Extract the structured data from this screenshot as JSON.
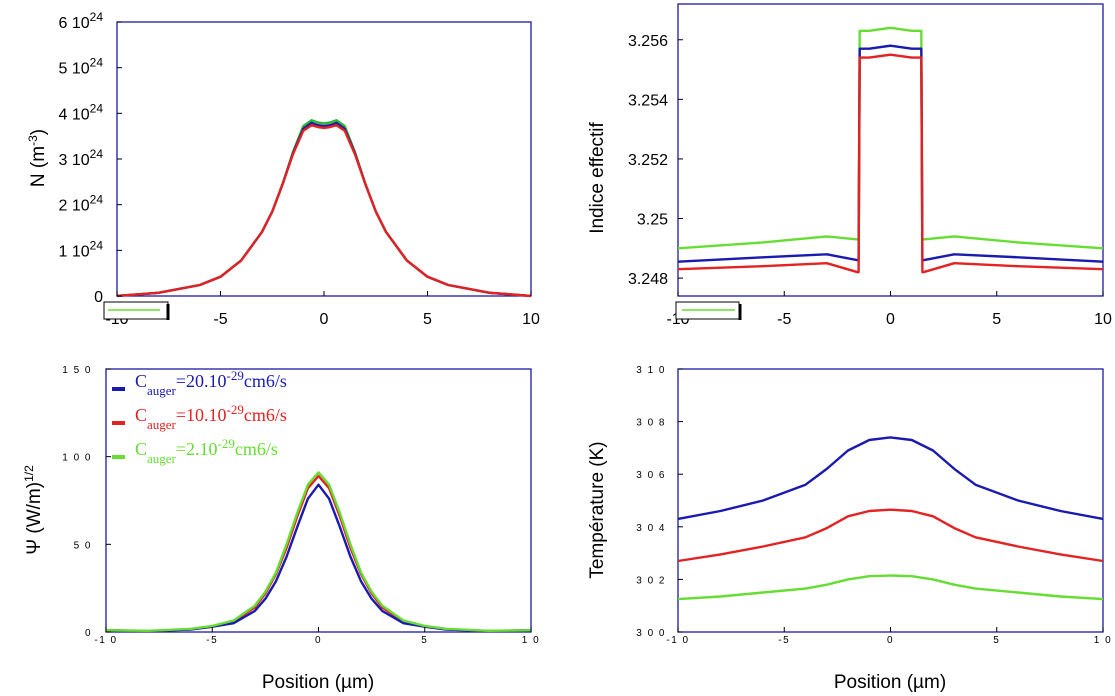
{
  "chart_data": [
    {
      "type": "line",
      "title": "",
      "xlabel": "",
      "ylabel_main": "N (m",
      "ylabel_sup": "-3",
      "ylabel_end": ")",
      "xlim": [
        -10,
        10
      ],
      "ylim": [
        0,
        6e+24
      ],
      "xticks": [
        {
          "v": -10,
          "t": "-10"
        },
        {
          "v": -5,
          "t": "-5"
        },
        {
          "v": 0,
          "t": "0"
        },
        {
          "v": 5,
          "t": "5"
        },
        {
          "v": 10,
          "t": "10"
        }
      ],
      "yticks": [
        {
          "v": 0,
          "base": "0",
          "exp": ""
        },
        {
          "v": 1e+24,
          "base": "1 10",
          "exp": "24"
        },
        {
          "v": 2e+24,
          "base": "2 10",
          "exp": "24"
        },
        {
          "v": 3e+24,
          "base": "3 10",
          "exp": "24"
        },
        {
          "v": 4e+24,
          "base": "4 10",
          "exp": "24"
        },
        {
          "v": 5e+24,
          "base": "5 10",
          "exp": "24"
        },
        {
          "v": 6e+24,
          "base": "6 10",
          "exp": "24"
        }
      ],
      "series": [
        {
          "color": "#2db82d",
          "x": [
            -10,
            -8,
            -6,
            -5,
            -4,
            -3,
            -2.5,
            -2,
            -1.5,
            -1,
            -0.6,
            -0.3,
            0,
            0.3,
            0.6,
            1,
            1.5,
            2,
            2.5,
            3,
            4,
            5,
            6,
            8,
            10
          ],
          "y": [
            3e+21,
            7e+22,
            2.4e+23,
            4.2e+23,
            7.8e+23,
            1.4e+24,
            1.85e+24,
            2.45e+24,
            3.15e+24,
            3.72e+24,
            3.85e+24,
            3.8e+24,
            3.78e+24,
            3.8e+24,
            3.85e+24,
            3.72e+24,
            3.15e+24,
            2.45e+24,
            1.85e+24,
            1.4e+24,
            7.8e+23,
            4.2e+23,
            2.4e+23,
            7e+22,
            3e+21
          ]
        },
        {
          "color": "#1a1ab0",
          "x": [
            -10,
            -8,
            -6,
            -5,
            -4,
            -3,
            -2.5,
            -2,
            -1.5,
            -1,
            -0.6,
            -0.3,
            0,
            0.3,
            0.6,
            1,
            1.5,
            2,
            2.5,
            3,
            4,
            5,
            6,
            8,
            10
          ],
          "y": [
            3e+21,
            7e+22,
            2.4e+23,
            4.2e+23,
            7.8e+23,
            1.4e+24,
            1.85e+24,
            2.45e+24,
            3.12e+24,
            3.66e+24,
            3.79e+24,
            3.74e+24,
            3.72e+24,
            3.74e+24,
            3.79e+24,
            3.66e+24,
            3.12e+24,
            2.45e+24,
            1.85e+24,
            1.4e+24,
            7.8e+23,
            4.2e+23,
            2.4e+23,
            7e+22,
            3e+21
          ]
        },
        {
          "color": "#e32222",
          "x": [
            -10,
            -8,
            -6,
            -5,
            -4,
            -3,
            -2.5,
            -2,
            -1.5,
            -1,
            -0.6,
            -0.3,
            0,
            0.3,
            0.6,
            1,
            1.5,
            2,
            2.5,
            3,
            4,
            5,
            6,
            8,
            10
          ],
          "y": [
            3e+21,
            7e+22,
            2.4e+23,
            4.2e+23,
            7.8e+23,
            1.4e+24,
            1.85e+24,
            2.45e+24,
            3.1e+24,
            3.62e+24,
            3.74e+24,
            3.7e+24,
            3.68e+24,
            3.7e+24,
            3.74e+24,
            3.62e+24,
            3.1e+24,
            2.45e+24,
            1.85e+24,
            1.4e+24,
            7.8e+23,
            4.2e+23,
            2.4e+23,
            7e+22,
            3e+21
          ]
        }
      ]
    },
    {
      "type": "line",
      "title": "",
      "xlabel": "",
      "ylabel_main": "Indice effectif",
      "xlim": [
        -10,
        10
      ],
      "ylim": [
        3.2474,
        3.2572
      ],
      "xticks": [
        {
          "v": -10,
          "t": "-10"
        },
        {
          "v": -5,
          "t": "-5"
        },
        {
          "v": 0,
          "t": "0"
        },
        {
          "v": 5,
          "t": "5"
        },
        {
          "v": 10,
          "t": "10"
        }
      ],
      "yticks": [
        {
          "v": 3.248,
          "base": "3.248",
          "exp": ""
        },
        {
          "v": 3.25,
          "base": "3.25",
          "exp": ""
        },
        {
          "v": 3.252,
          "base": "3.252",
          "exp": ""
        },
        {
          "v": 3.254,
          "base": "3.254",
          "exp": ""
        },
        {
          "v": 3.256,
          "base": "3.256",
          "exp": ""
        }
      ],
      "series": [
        {
          "color": "#66dd33",
          "x": [
            -10,
            -6,
            -3,
            -1.55,
            -1.5,
            -1.45,
            -1,
            0,
            1,
            1.45,
            1.5,
            1.55,
            3,
            6,
            10
          ],
          "y": [
            3.249,
            3.2492,
            3.2494,
            3.2493,
            3.2493,
            3.2563,
            3.2563,
            3.2564,
            3.2563,
            3.2563,
            3.2493,
            3.2493,
            3.2494,
            3.2492,
            3.249
          ]
        },
        {
          "color": "#1a1ab0",
          "x": [
            -10,
            -6,
            -3,
            -1.55,
            -1.5,
            -1.45,
            -1,
            0,
            1,
            1.45,
            1.5,
            1.55,
            3,
            6,
            10
          ],
          "y": [
            3.24855,
            3.2487,
            3.2488,
            3.2486,
            3.2486,
            3.2557,
            3.2557,
            3.2558,
            3.2557,
            3.2557,
            3.2486,
            3.2486,
            3.2488,
            3.2487,
            3.24855
          ]
        },
        {
          "color": "#e32222",
          "x": [
            -10,
            -6,
            -3,
            -1.55,
            -1.5,
            -1.45,
            -1,
            0,
            1,
            1.45,
            1.5,
            1.55,
            3,
            6,
            10
          ],
          "y": [
            3.2483,
            3.2484,
            3.2485,
            3.2482,
            3.2482,
            3.2554,
            3.2554,
            3.2555,
            3.2554,
            3.2554,
            3.2482,
            3.2482,
            3.2485,
            3.2484,
            3.2483
          ]
        }
      ]
    },
    {
      "type": "line",
      "title": "",
      "xlabel": "Position (µm)",
      "ylabel_main": "Ψ (W/m)",
      "ylabel_sup": "1/2",
      "ylabel_end": "",
      "xlim": [
        -10,
        10
      ],
      "ylim": [
        0,
        150
      ],
      "xticks": [
        {
          "v": -10,
          "t": "-1 0"
        },
        {
          "v": -5,
          "t": "-5"
        },
        {
          "v": 0,
          "t": "0"
        },
        {
          "v": 5,
          "t": "5"
        },
        {
          "v": 10,
          "t": "1 0"
        }
      ],
      "yticks": [
        {
          "v": 0,
          "base": "0",
          "exp": ""
        },
        {
          "v": 50,
          "base": "5 0",
          "exp": ""
        },
        {
          "v": 100,
          "base": "1 0 0",
          "exp": ""
        },
        {
          "v": 150,
          "base": "1 5 0",
          "exp": ""
        }
      ],
      "legend": [
        {
          "color": "#1a1ab0",
          "pre": "C",
          "sub": "auger",
          "mid": "=20.10",
          "sup": "-29",
          "post": "cm6/s"
        },
        {
          "color": "#e32222",
          "pre": "C",
          "sub": "auger",
          "mid": "=10.10",
          "sup": "-29",
          "post": "cm6/s"
        },
        {
          "color": "#66dd33",
          "pre": "C",
          "sub": "auger",
          "mid": "=2.10",
          "sup": "-29",
          "post": "cm6/s"
        }
      ],
      "series": [
        {
          "color": "#e32222",
          "x": [
            -10,
            -8,
            -6,
            -5,
            -4,
            -3,
            -2.5,
            -2,
            -1.5,
            -1,
            -0.5,
            0,
            0.5,
            1,
            1.5,
            2,
            2.5,
            3,
            4,
            5,
            6,
            8,
            10
          ],
          "y": [
            1,
            0.5,
            1.5,
            3,
            6,
            14,
            22,
            33,
            48,
            66,
            82,
            89,
            82,
            66,
            48,
            33,
            22,
            14,
            6,
            3,
            1.5,
            0.5,
            1
          ]
        },
        {
          "color": "#1a1ab0",
          "x": [
            -10,
            -8,
            -6,
            -5,
            -4,
            -3,
            -2.5,
            -2,
            -1.5,
            -1,
            -0.5,
            0,
            0.5,
            1,
            1.5,
            2,
            2.5,
            3,
            4,
            5,
            6,
            8,
            10
          ],
          "y": [
            1,
            0.5,
            1.5,
            3,
            5,
            12,
            19,
            29,
            43,
            60,
            76,
            84,
            76,
            60,
            43,
            29,
            19,
            12,
            5,
            3,
            1.5,
            0.5,
            1
          ]
        },
        {
          "color": "#66dd33",
          "x": [
            -10,
            -8,
            -6,
            -5,
            -4,
            -3,
            -2.5,
            -2,
            -1.5,
            -1,
            -0.5,
            0,
            0.5,
            1,
            1.5,
            2,
            2.5,
            3,
            4,
            5,
            6,
            8,
            10
          ],
          "y": [
            1,
            0.7,
            1.8,
            3.5,
            6.5,
            15,
            23,
            34,
            50,
            68,
            84,
            91,
            84,
            68,
            50,
            34,
            23,
            15,
            6.5,
            3.5,
            1.8,
            0.7,
            1
          ]
        }
      ]
    },
    {
      "type": "line",
      "title": "",
      "xlabel": "Position (µm)",
      "ylabel_main": "Température (K)",
      "xlim": [
        -10,
        10
      ],
      "ylim": [
        300,
        310
      ],
      "xticks": [
        {
          "v": -10,
          "t": "-1 0"
        },
        {
          "v": -5,
          "t": "-5"
        },
        {
          "v": 0,
          "t": "0"
        },
        {
          "v": 5,
          "t": "5"
        },
        {
          "v": 10,
          "t": "1 0"
        }
      ],
      "yticks": [
        {
          "v": 300,
          "base": "3 0 0",
          "exp": ""
        },
        {
          "v": 302,
          "base": "3 0 2",
          "exp": ""
        },
        {
          "v": 304,
          "base": "3 0 4",
          "exp": ""
        },
        {
          "v": 306,
          "base": "3 0 6",
          "exp": ""
        },
        {
          "v": 308,
          "base": "3 0 8",
          "exp": ""
        },
        {
          "v": 310,
          "base": "3 1 0",
          "exp": ""
        }
      ],
      "series": [
        {
          "color": "#1a1ab0",
          "x": [
            -10,
            -8,
            -6,
            -4,
            -3,
            -2,
            -1,
            0,
            1,
            2,
            3,
            4,
            6,
            8,
            10
          ],
          "y": [
            304.3,
            304.6,
            305.0,
            305.6,
            306.2,
            306.9,
            307.3,
            307.4,
            307.3,
            306.9,
            306.2,
            305.6,
            305.0,
            304.6,
            304.3
          ]
        },
        {
          "color": "#e32222",
          "x": [
            -10,
            -8,
            -6,
            -4,
            -3,
            -2,
            -1,
            0,
            1,
            2,
            3,
            4,
            6,
            8,
            10
          ],
          "y": [
            302.7,
            302.95,
            303.25,
            303.6,
            303.95,
            304.4,
            304.6,
            304.65,
            304.6,
            304.4,
            303.95,
            303.6,
            303.25,
            302.95,
            302.7
          ]
        },
        {
          "color": "#66dd33",
          "x": [
            -10,
            -8,
            -6,
            -4,
            -3,
            -2,
            -1,
            0,
            1,
            2,
            3,
            4,
            6,
            8,
            10
          ],
          "y": [
            301.25,
            301.35,
            301.5,
            301.65,
            301.8,
            302.0,
            302.12,
            302.15,
            302.12,
            302.0,
            301.8,
            301.65,
            301.5,
            301.35,
            301.25
          ]
        }
      ]
    }
  ]
}
